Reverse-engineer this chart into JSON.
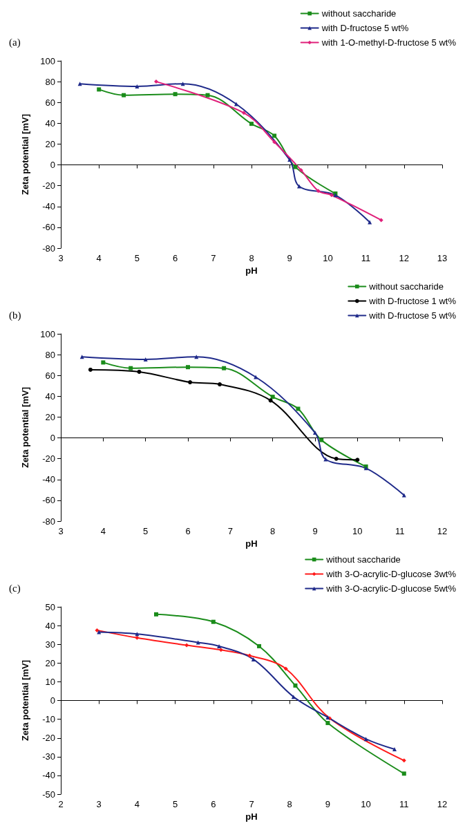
{
  "chart_data": [
    {
      "type": "line",
      "title": "(a)",
      "xlabel": "pH",
      "ylabel": "Zeta potential [mV]",
      "xlim": [
        3,
        13
      ],
      "xticks": [
        3,
        4,
        5,
        6,
        7,
        8,
        9,
        10,
        11,
        12,
        13
      ],
      "ylim": [
        -80,
        100
      ],
      "yticks": [
        -80,
        -60,
        -40,
        -20,
        0,
        20,
        40,
        60,
        80,
        100
      ],
      "legend": "top right",
      "series": [
        {
          "name": "without saccharide",
          "color": "#1a8c1a",
          "marker": "square",
          "x": [
            4,
            4.65,
            6,
            6.85,
            8,
            8.6,
            9.15,
            10.2
          ],
          "values": [
            72.5,
            67,
            68,
            67,
            39.5,
            28,
            -2,
            -27.5
          ]
        },
        {
          "name": "with D-fructose 5 wt%",
          "color": "#1f2a8a",
          "marker": "triangle",
          "x": [
            3.5,
            5,
            6.2,
            7.6,
            9,
            9.25,
            10.2,
            11.1
          ],
          "values": [
            78,
            75.5,
            78,
            58.5,
            5,
            -20.5,
            -29,
            -55
          ]
        },
        {
          "name": "with 1-O-methyl-D-fructose 5 wt%",
          "color": "#e0207a",
          "marker": "diamond",
          "x": [
            5.5,
            7.8,
            8.6,
            9.3,
            9.75,
            10.1,
            11.4
          ],
          "values": [
            80,
            50,
            22,
            -5,
            -25,
            -29,
            -53
          ]
        }
      ]
    },
    {
      "type": "line",
      "title": "(b)",
      "xlabel": "pH",
      "ylabel": "Zeta potential [mV]",
      "xlim": [
        3,
        12
      ],
      "xticks": [
        3,
        4,
        5,
        6,
        7,
        8,
        9,
        10,
        11,
        12
      ],
      "ylim": [
        -80,
        100
      ],
      "yticks": [
        -80,
        -60,
        -40,
        -20,
        0,
        20,
        40,
        60,
        80,
        100
      ],
      "legend": "top right",
      "series": [
        {
          "name": "without saccharide",
          "color": "#1a8c1a",
          "marker": "square",
          "x": [
            4,
            4.65,
            6,
            6.85,
            8,
            8.6,
            9.15,
            10.2
          ],
          "values": [
            72.5,
            67,
            68,
            67,
            39.5,
            28,
            -2,
            -27.5
          ]
        },
        {
          "name": "with D-fructose 1 wt%",
          "color": "#000000",
          "marker": "circle",
          "x": [
            3.7,
            4.85,
            6.05,
            6.75,
            7.95,
            9.5,
            10
          ],
          "values": [
            65.5,
            63.5,
            53.5,
            51.5,
            36,
            -20,
            -21
          ]
        },
        {
          "name": "with D-fructose 5 wt%",
          "color": "#1f2a8a",
          "marker": "triangle",
          "x": [
            3.5,
            5,
            6.2,
            7.6,
            9,
            9.25,
            10.2,
            11.1
          ],
          "values": [
            78,
            75.5,
            78,
            58.5,
            5,
            -20.5,
            -29,
            -55
          ]
        }
      ]
    },
    {
      "type": "line",
      "title": "(c)",
      "xlabel": "pH",
      "ylabel": "Zeta potential [mV]",
      "xlim": [
        2,
        12
      ],
      "xticks": [
        2,
        3,
        4,
        5,
        6,
        7,
        8,
        9,
        10,
        11,
        12
      ],
      "ylim": [
        -50,
        50
      ],
      "yticks": [
        -50,
        -40,
        -30,
        -20,
        -10,
        0,
        10,
        20,
        30,
        40,
        50
      ],
      "legend": "top right",
      "series": [
        {
          "name": "without saccharide",
          "color": "#1a8c1a",
          "marker": "square",
          "x": [
            4.5,
            6,
            7.2,
            8.15,
            9,
            11
          ],
          "values": [
            46,
            42,
            29,
            8,
            -12,
            -39
          ]
        },
        {
          "name": "with 3-O-acrylic-D-glucose 3wt%",
          "color": "#ff1a1a",
          "marker": "diamond",
          "x": [
            2.95,
            4,
            5.3,
            6.2,
            6.95,
            7.9,
            9.05,
            11
          ],
          "values": [
            37.5,
            33.5,
            29.5,
            27,
            24,
            17,
            -9.5,
            -32
          ]
        },
        {
          "name": "with 3-O-acrylic-D-glucose 5wt%",
          "color": "#1f2a8a",
          "marker": "triangle",
          "x": [
            3,
            4,
            5.6,
            6.15,
            7.05,
            8.1,
            9,
            10,
            10.75
          ],
          "values": [
            36.5,
            35.5,
            31,
            29,
            22,
            2,
            -9,
            -20.5,
            -26
          ]
        }
      ]
    }
  ]
}
